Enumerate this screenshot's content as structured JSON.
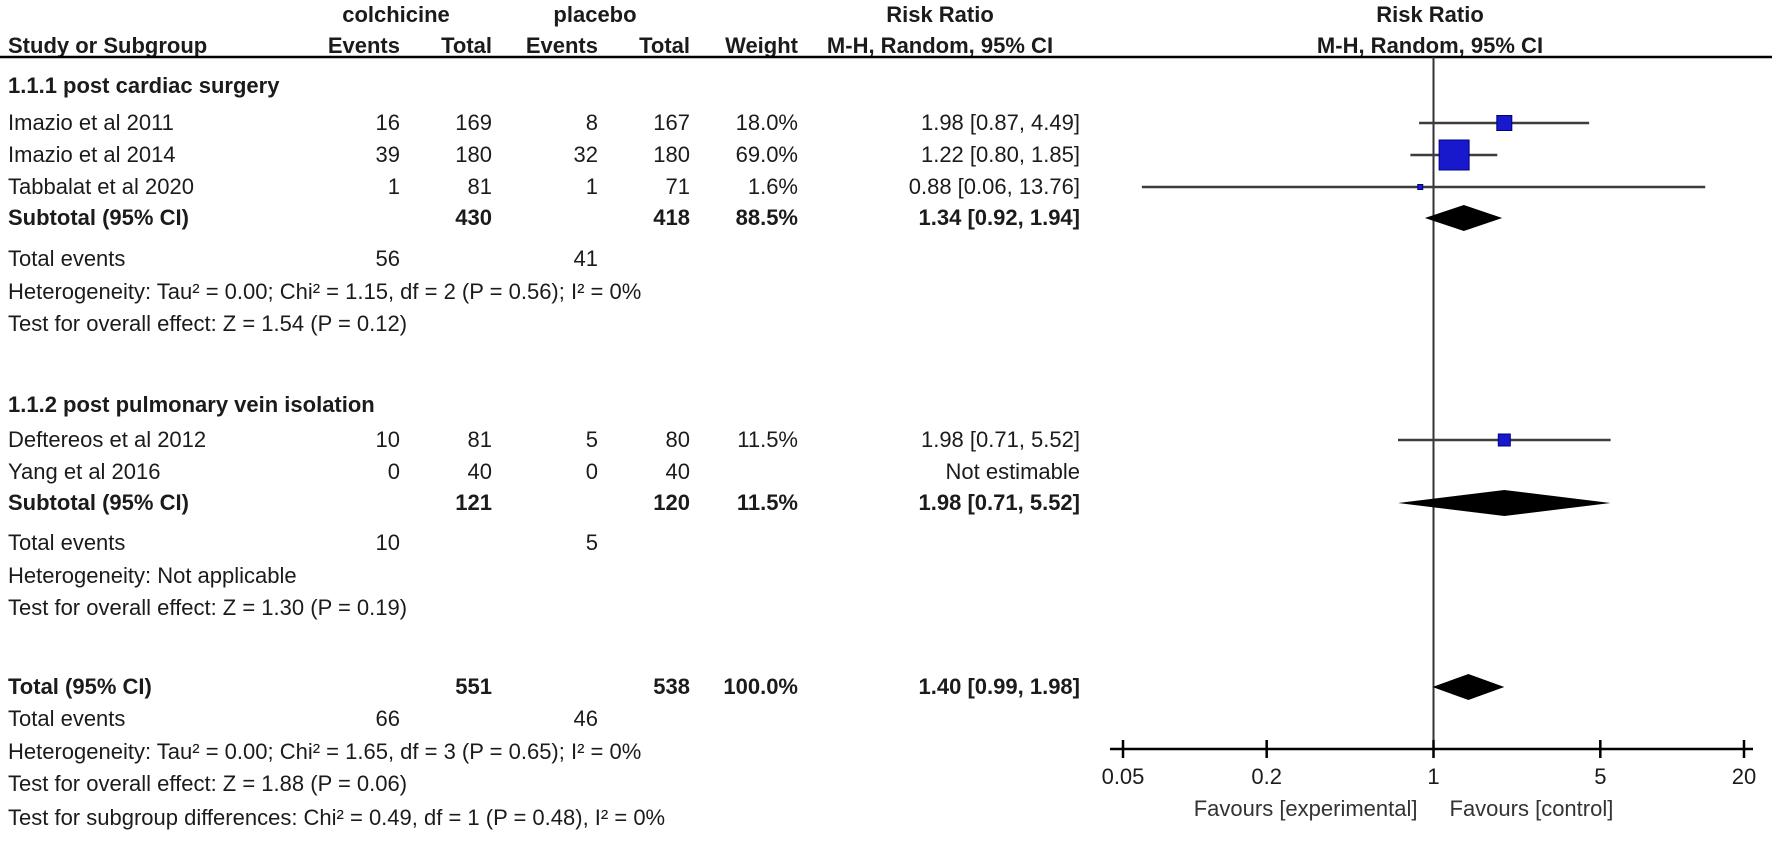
{
  "header": {
    "group_experimental": "colchicine",
    "group_control": "placebo",
    "risk_ratio": "Risk Ratio",
    "study_or_subgroup": "Study or Subgroup",
    "events": "Events",
    "total": "Total",
    "weight": "Weight",
    "method_ci": "M-H, Random, 95% CI"
  },
  "rows": [
    {
      "type": "subgroup",
      "label": "1.1.1 post cardiac surgery"
    },
    {
      "type": "study",
      "label": "Imazio et al 2011",
      "e1": "16",
      "t1": "169",
      "e2": "8",
      "t2": "167",
      "weight": "18.0%",
      "rr": "1.98 [0.87, 4.49]",
      "plot": {
        "rr": 1.98,
        "lo": 0.87,
        "hi": 4.49,
        "w": 18.0
      }
    },
    {
      "type": "study",
      "label": "Imazio et al 2014",
      "e1": "39",
      "t1": "180",
      "e2": "32",
      "t2": "180",
      "weight": "69.0%",
      "rr": "1.22 [0.80, 1.85]",
      "plot": {
        "rr": 1.22,
        "lo": 0.8,
        "hi": 1.85,
        "w": 69.0
      }
    },
    {
      "type": "study",
      "label": "Tabbalat et al 2020",
      "e1": "1",
      "t1": "81",
      "e2": "1",
      "t2": "71",
      "weight": "1.6%",
      "rr": "0.88 [0.06, 13.76]",
      "plot": {
        "rr": 0.88,
        "lo": 0.06,
        "hi": 13.76,
        "w": 1.6
      }
    },
    {
      "type": "subtotal",
      "label": "Subtotal (95% CI)",
      "t1": "430",
      "t2": "418",
      "weight": "88.5%",
      "rr": "1.34 [0.92, 1.94]",
      "diamond": {
        "rr": 1.34,
        "lo": 0.92,
        "hi": 1.94
      }
    },
    {
      "type": "events",
      "label": "Total events",
      "e1": "56",
      "e2": "41"
    },
    {
      "type": "note",
      "label": "Heterogeneity: Tau² = 0.00; Chi² = 1.15, df = 2 (P = 0.56); I² = 0%"
    },
    {
      "type": "note",
      "label": "Test for overall effect: Z = 1.54 (P = 0.12)"
    },
    {
      "type": "subgroup",
      "label": "1.1.2 post pulmonary vein isolation"
    },
    {
      "type": "study",
      "label": "Deftereos et al 2012",
      "e1": "10",
      "t1": "81",
      "e2": "5",
      "t2": "80",
      "weight": "11.5%",
      "rr": "1.98 [0.71, 5.52]",
      "plot": {
        "rr": 1.98,
        "lo": 0.71,
        "hi": 5.52,
        "w": 11.5
      }
    },
    {
      "type": "study",
      "label": "Yang et al 2016",
      "e1": "0",
      "t1": "40",
      "e2": "0",
      "t2": "40",
      "weight": "",
      "rr": "Not estimable"
    },
    {
      "type": "subtotal",
      "label": "Subtotal (95% CI)",
      "t1": "121",
      "t2": "120",
      "weight": "11.5%",
      "rr": "1.98 [0.71, 5.52]",
      "diamond": {
        "rr": 1.98,
        "lo": 0.71,
        "hi": 5.52
      }
    },
    {
      "type": "events",
      "label": "Total events",
      "e1": "10",
      "e2": "5"
    },
    {
      "type": "note",
      "label": "Heterogeneity: Not applicable"
    },
    {
      "type": "note",
      "label": "Test for overall effect: Z = 1.30 (P = 0.19)"
    },
    {
      "type": "total",
      "label": "Total (95% CI)",
      "t1": "551",
      "t2": "538",
      "weight": "100.0%",
      "rr": "1.40 [0.99, 1.98]",
      "diamond": {
        "rr": 1.4,
        "lo": 0.99,
        "hi": 1.98
      }
    },
    {
      "type": "events",
      "label": "Total events",
      "e1": "66",
      "e2": "46"
    },
    {
      "type": "note",
      "label": "Heterogeneity: Tau² = 0.00; Chi² = 1.65, df = 3 (P = 0.65); I² = 0%"
    },
    {
      "type": "note",
      "label": "Test for overall effect: Z = 1.88 (P = 0.06)"
    },
    {
      "type": "note",
      "label": "Test for subgroup differences: Chi² = 0.49, df = 1 (P = 0.48), I² = 0%"
    }
  ],
  "chart_data": {
    "type": "forest",
    "effect_measure": "Risk Ratio",
    "method": "M-H, Random, 95% CI",
    "x_scale": "log",
    "x_ticks": [
      0.05,
      0.2,
      1,
      5,
      20
    ],
    "xlim": [
      0.05,
      20
    ],
    "reference_line": 1,
    "favours_left": "Favours [experimental]",
    "favours_right": "Favours [control]",
    "subgroups": [
      {
        "name": "1.1.1 post cardiac surgery",
        "studies": [
          {
            "study": "Imazio et al 2011",
            "events_exp": 16,
            "total_exp": 169,
            "events_ctrl": 8,
            "total_ctrl": 167,
            "weight_pct": 18.0,
            "rr": 1.98,
            "ci": [
              0.87,
              4.49
            ]
          },
          {
            "study": "Imazio et al 2014",
            "events_exp": 39,
            "total_exp": 180,
            "events_ctrl": 32,
            "total_ctrl": 180,
            "weight_pct": 69.0,
            "rr": 1.22,
            "ci": [
              0.8,
              1.85
            ]
          },
          {
            "study": "Tabbalat et al 2020",
            "events_exp": 1,
            "total_exp": 81,
            "events_ctrl": 1,
            "total_ctrl": 71,
            "weight_pct": 1.6,
            "rr": 0.88,
            "ci": [
              0.06,
              13.76
            ]
          }
        ],
        "subtotal": {
          "total_exp": 430,
          "total_ctrl": 418,
          "weight_pct": 88.5,
          "rr": 1.34,
          "ci": [
            0.92,
            1.94
          ],
          "total_events_exp": 56,
          "total_events_ctrl": 41,
          "heterogeneity": "Tau² = 0.00; Chi² = 1.15, df = 2 (P = 0.56); I² = 0%",
          "overall_effect": "Z = 1.54 (P = 0.12)"
        }
      },
      {
        "name": "1.1.2 post pulmonary vein isolation",
        "studies": [
          {
            "study": "Deftereos et al 2012",
            "events_exp": 10,
            "total_exp": 81,
            "events_ctrl": 5,
            "total_ctrl": 80,
            "weight_pct": 11.5,
            "rr": 1.98,
            "ci": [
              0.71,
              5.52
            ]
          },
          {
            "study": "Yang et al 2016",
            "events_exp": 0,
            "total_exp": 40,
            "events_ctrl": 0,
            "total_ctrl": 40,
            "weight_pct": null,
            "rr": null,
            "ci": null,
            "note": "Not estimable"
          }
        ],
        "subtotal": {
          "total_exp": 121,
          "total_ctrl": 120,
          "weight_pct": 11.5,
          "rr": 1.98,
          "ci": [
            0.71,
            5.52
          ],
          "total_events_exp": 10,
          "total_events_ctrl": 5,
          "heterogeneity": "Not applicable",
          "overall_effect": "Z = 1.30 (P = 0.19)"
        }
      }
    ],
    "total": {
      "total_exp": 551,
      "total_ctrl": 538,
      "weight_pct": 100.0,
      "rr": 1.4,
      "ci": [
        0.99,
        1.98
      ],
      "total_events_exp": 66,
      "total_events_ctrl": 46,
      "heterogeneity": "Tau² = 0.00; Chi² = 1.65, df = 3 (P = 0.65); I² = 0%",
      "overall_effect": "Z = 1.88 (P = 0.06)",
      "subgroup_differences": "Chi² = 0.49, df = 1 (P = 0.48), I² = 0%"
    }
  },
  "colors": {
    "square_fill": "#1818CC",
    "square_border": "#000080",
    "ci_line": "#3d3d3d",
    "diamond": "#000000",
    "axis": "#000000",
    "text": "#1b1b1b"
  }
}
